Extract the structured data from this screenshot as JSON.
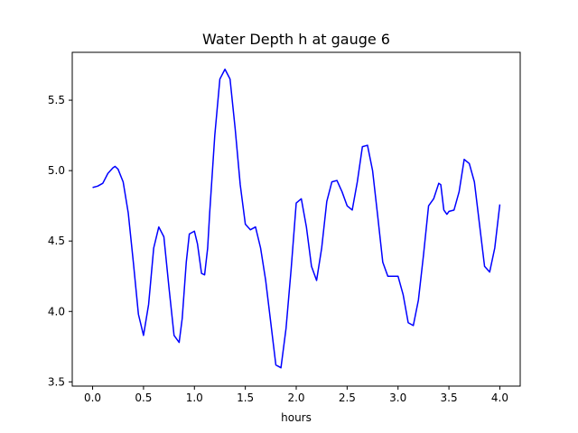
{
  "chart_data": {
    "type": "line",
    "title": "Water Depth h at gauge 6",
    "xlabel": "hours",
    "ylabel": "",
    "xlim": [
      -0.2,
      4.2
    ],
    "ylim": [
      3.47,
      5.84
    ],
    "grid": false,
    "xticks": [
      "0.0",
      "0.5",
      "1.0",
      "1.5",
      "2.0",
      "2.5",
      "3.0",
      "3.5",
      "4.0"
    ],
    "yticks": [
      "3.5",
      "4.0",
      "4.5",
      "5.0",
      "5.5"
    ],
    "series": [
      {
        "color": "#0000ff",
        "x": [
          0.0,
          0.05,
          0.1,
          0.15,
          0.2,
          0.22,
          0.25,
          0.3,
          0.35,
          0.4,
          0.45,
          0.5,
          0.55,
          0.6,
          0.65,
          0.7,
          0.75,
          0.8,
          0.85,
          0.88,
          0.92,
          0.95,
          1.0,
          1.03,
          1.07,
          1.1,
          1.13,
          1.15,
          1.2,
          1.25,
          1.3,
          1.35,
          1.4,
          1.45,
          1.5,
          1.55,
          1.6,
          1.65,
          1.7,
          1.75,
          1.8,
          1.85,
          1.9,
          1.95,
          2.0,
          2.05,
          2.1,
          2.15,
          2.2,
          2.25,
          2.3,
          2.35,
          2.4,
          2.45,
          2.5,
          2.55,
          2.6,
          2.65,
          2.7,
          2.75,
          2.8,
          2.85,
          2.9,
          2.95,
          3.0,
          3.05,
          3.1,
          3.15,
          3.2,
          3.25,
          3.3,
          3.35,
          3.4,
          3.42,
          3.45,
          3.48,
          3.5,
          3.55,
          3.6,
          3.65,
          3.7,
          3.75,
          3.8,
          3.85,
          3.9,
          3.95,
          4.0
        ],
        "values": [
          4.88,
          4.89,
          4.91,
          4.98,
          5.02,
          5.03,
          5.01,
          4.92,
          4.7,
          4.35,
          3.98,
          3.83,
          4.05,
          4.45,
          4.6,
          4.53,
          4.17,
          3.83,
          3.78,
          3.95,
          4.35,
          4.55,
          4.57,
          4.48,
          4.27,
          4.26,
          4.45,
          4.7,
          5.25,
          5.65,
          5.72,
          5.65,
          5.3,
          4.9,
          4.62,
          4.58,
          4.6,
          4.45,
          4.22,
          3.92,
          3.62,
          3.6,
          3.88,
          4.3,
          4.77,
          4.8,
          4.6,
          4.32,
          4.22,
          4.45,
          4.78,
          4.92,
          4.93,
          4.85,
          4.75,
          4.72,
          4.92,
          5.17,
          5.18,
          5.0,
          4.68,
          4.35,
          4.25,
          4.25,
          4.25,
          4.12,
          3.92,
          3.9,
          4.08,
          4.4,
          4.75,
          4.8,
          4.91,
          4.9,
          4.72,
          4.69,
          4.71,
          4.72,
          4.85,
          5.08,
          5.05,
          4.92,
          4.62,
          4.32,
          4.28,
          4.45,
          4.76
        ]
      }
    ]
  }
}
